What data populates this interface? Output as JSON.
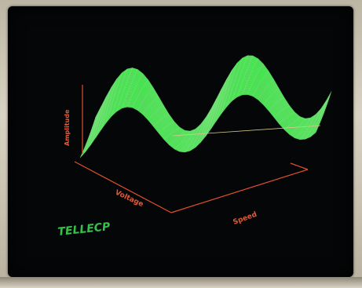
{
  "screen": {
    "axis_labels": {
      "vertical": "Amplitude",
      "left_floor": "Voltage",
      "right_floor": "Speed"
    },
    "logo_text": "TELLECP",
    "colors": {
      "surface_top": "#3fe24a",
      "surface_under": "#d0301c",
      "axis_lines": "#e0502f",
      "background": "#050607",
      "logo": "#35c24b"
    }
  }
}
